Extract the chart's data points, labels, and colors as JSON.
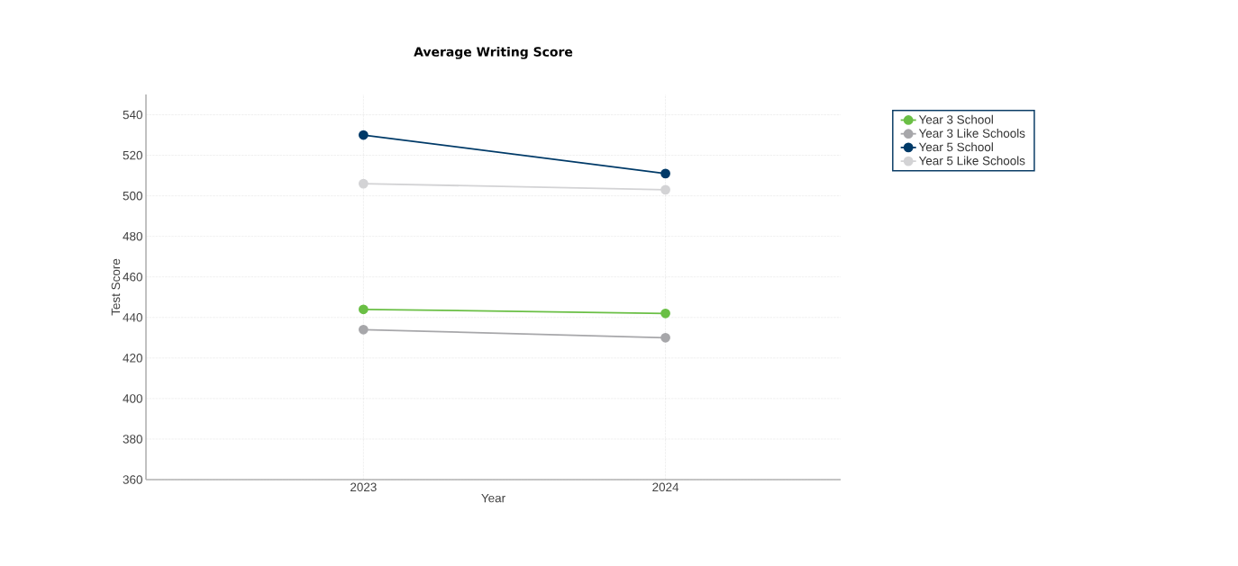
{
  "chart_data": {
    "type": "line",
    "title": "Average Writing Score",
    "xlabel": "Year",
    "ylabel": "Test Score",
    "categories": [
      "2023",
      "2024"
    ],
    "series": [
      {
        "name": "Year 3 School",
        "color": "#6abf45",
        "values": [
          444,
          442
        ]
      },
      {
        "name": "Year 3 Like Schools",
        "color": "#a7a7aa",
        "values": [
          434,
          430
        ]
      },
      {
        "name": "Year 5 School",
        "color": "#003a68",
        "values": [
          530,
          511
        ]
      },
      {
        "name": "Year 5 Like Schools",
        "color": "#d3d3d5",
        "values": [
          506,
          503
        ]
      }
    ],
    "ylim": [
      360,
      550
    ],
    "yticks": [
      360,
      380,
      400,
      420,
      440,
      460,
      480,
      500,
      520,
      540
    ],
    "grid": true,
    "legend": "top right",
    "marker": "circle",
    "line_style": "solid"
  }
}
